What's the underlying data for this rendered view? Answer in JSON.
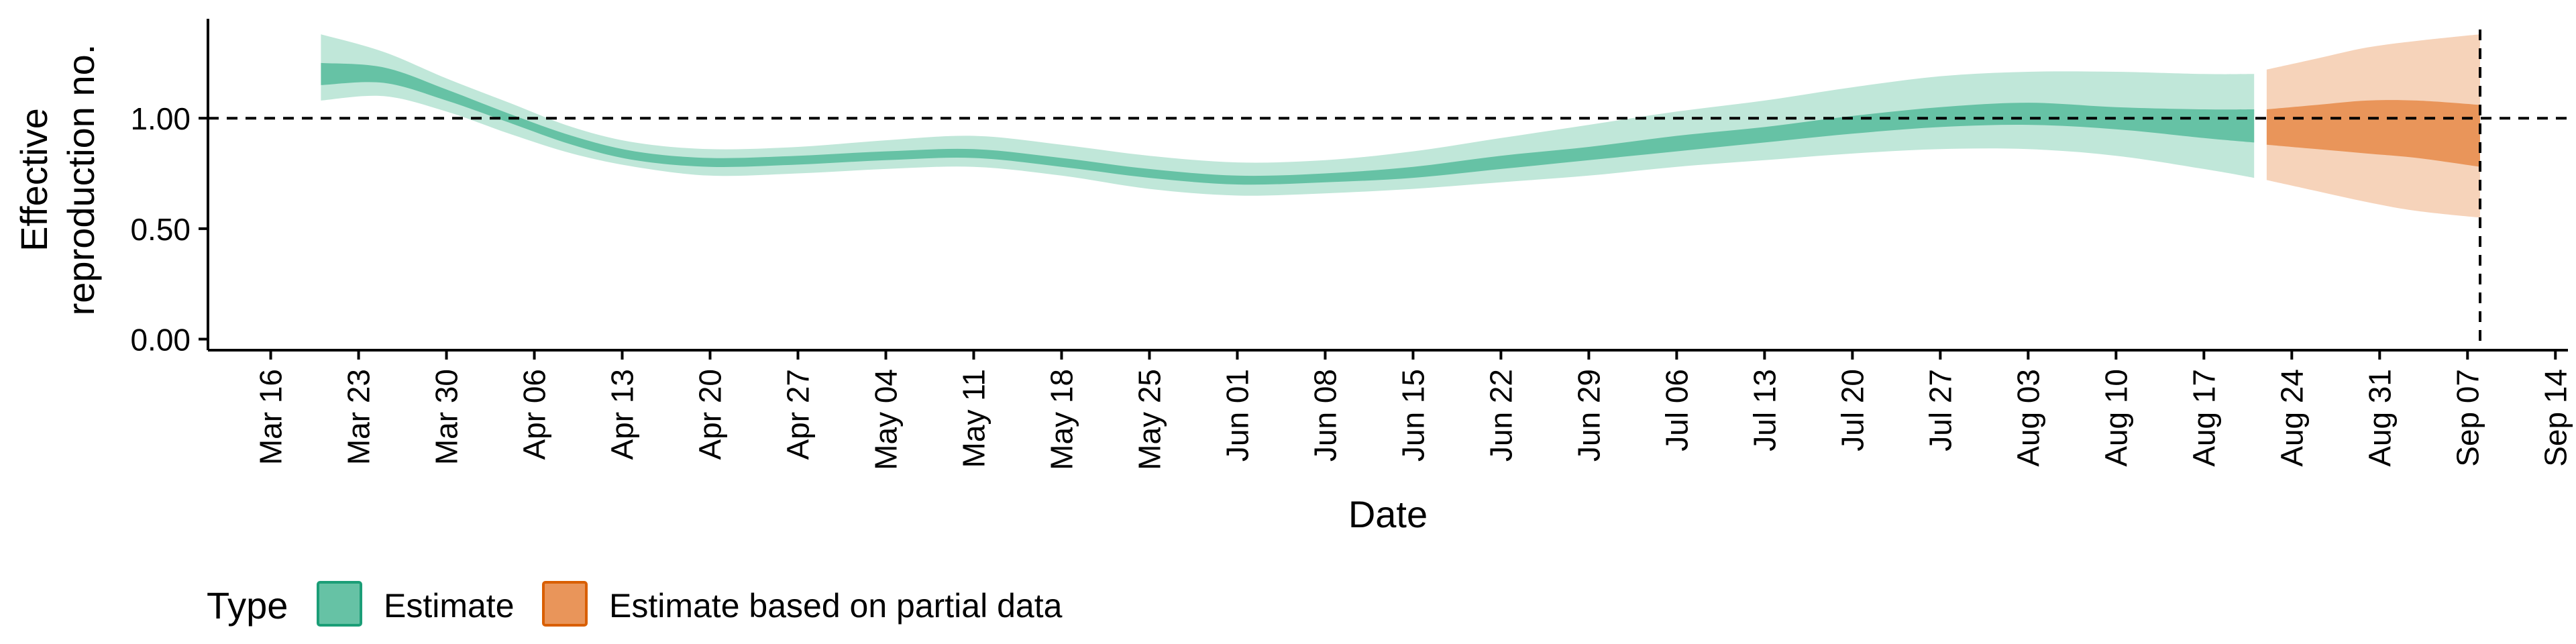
{
  "chart_data": {
    "type": "area",
    "xlabel": "Date",
    "ylabel": [
      "Effective",
      "reproduction no."
    ],
    "x_domain": [
      "2020-03-11",
      "2020-09-15"
    ],
    "ylim": [
      -0.05,
      1.45
    ],
    "yticks": [
      0,
      0.5,
      1.0
    ],
    "ytick_labels": [
      "0.00",
      "0.50",
      "1.00"
    ],
    "xticks": [
      "2020-03-16",
      "2020-03-23",
      "2020-03-30",
      "2020-04-06",
      "2020-04-13",
      "2020-04-20",
      "2020-04-27",
      "2020-05-04",
      "2020-05-11",
      "2020-05-18",
      "2020-05-25",
      "2020-06-01",
      "2020-06-08",
      "2020-06-15",
      "2020-06-22",
      "2020-06-29",
      "2020-07-06",
      "2020-07-13",
      "2020-07-20",
      "2020-07-27",
      "2020-08-03",
      "2020-08-10",
      "2020-08-17",
      "2020-08-24",
      "2020-08-31",
      "2020-09-07",
      "2020-09-14"
    ],
    "xtick_labels": [
      "Mar 16",
      "Mar 23",
      "Mar 30",
      "Apr 06",
      "Apr 13",
      "Apr 20",
      "Apr 27",
      "May 04",
      "May 11",
      "May 18",
      "May 25",
      "Jun 01",
      "Jun 08",
      "Jun 15",
      "Jun 22",
      "Jun 29",
      "Jul 06",
      "Jul 13",
      "Jul 20",
      "Jul 27",
      "Aug 03",
      "Aug 10",
      "Aug 17",
      "Aug 24",
      "Aug 31",
      "Sep 07",
      "Sep 14"
    ],
    "reference_line_y": 1.0,
    "reference_line_x": "2020-09-08",
    "grid": false,
    "legend_placement": "bottom-left",
    "legend_title": "Type",
    "series": [
      {
        "name": "Estimate",
        "color": "#66c2a5",
        "color_outer": "#c0e7d9",
        "border": "#1b9e77",
        "points": [
          {
            "x": "2020-03-20",
            "lo90": 1.08,
            "lo50": 1.15,
            "hi50": 1.25,
            "hi90": 1.38
          },
          {
            "x": "2020-03-25",
            "lo90": 1.1,
            "lo50": 1.16,
            "hi50": 1.23,
            "hi90": 1.3
          },
          {
            "x": "2020-03-30",
            "lo90": 1.03,
            "lo50": 1.08,
            "hi50": 1.13,
            "hi90": 1.18
          },
          {
            "x": "2020-04-04",
            "lo90": 0.93,
            "lo50": 0.98,
            "hi50": 1.02,
            "hi90": 1.07
          },
          {
            "x": "2020-04-09",
            "lo90": 0.84,
            "lo50": 0.88,
            "hi50": 0.92,
            "hi90": 0.96
          },
          {
            "x": "2020-04-14",
            "lo90": 0.78,
            "lo50": 0.81,
            "hi50": 0.85,
            "hi90": 0.89
          },
          {
            "x": "2020-04-20",
            "lo90": 0.74,
            "lo50": 0.78,
            "hi50": 0.82,
            "hi90": 0.86
          },
          {
            "x": "2020-04-27",
            "lo90": 0.75,
            "lo50": 0.79,
            "hi50": 0.83,
            "hi90": 0.87
          },
          {
            "x": "2020-05-04",
            "lo90": 0.77,
            "lo50": 0.81,
            "hi50": 0.85,
            "hi90": 0.9
          },
          {
            "x": "2020-05-11",
            "lo90": 0.78,
            "lo50": 0.82,
            "hi50": 0.86,
            "hi90": 0.92
          },
          {
            "x": "2020-05-18",
            "lo90": 0.74,
            "lo50": 0.78,
            "hi50": 0.82,
            "hi90": 0.88
          },
          {
            "x": "2020-05-25",
            "lo90": 0.68,
            "lo50": 0.73,
            "hi50": 0.77,
            "hi90": 0.83
          },
          {
            "x": "2020-06-01",
            "lo90": 0.65,
            "lo50": 0.7,
            "hi50": 0.74,
            "hi90": 0.8
          },
          {
            "x": "2020-06-08",
            "lo90": 0.66,
            "lo50": 0.71,
            "hi50": 0.75,
            "hi90": 0.81
          },
          {
            "x": "2020-06-15",
            "lo90": 0.68,
            "lo50": 0.73,
            "hi50": 0.78,
            "hi90": 0.85
          },
          {
            "x": "2020-06-22",
            "lo90": 0.71,
            "lo50": 0.77,
            "hi50": 0.83,
            "hi90": 0.91
          },
          {
            "x": "2020-06-29",
            "lo90": 0.74,
            "lo50": 0.81,
            "hi50": 0.87,
            "hi90": 0.97
          },
          {
            "x": "2020-07-06",
            "lo90": 0.78,
            "lo50": 0.85,
            "hi50": 0.92,
            "hi90": 1.03
          },
          {
            "x": "2020-07-13",
            "lo90": 0.81,
            "lo50": 0.89,
            "hi50": 0.96,
            "hi90": 1.08
          },
          {
            "x": "2020-07-20",
            "lo90": 0.84,
            "lo50": 0.93,
            "hi50": 1.01,
            "hi90": 1.14
          },
          {
            "x": "2020-07-27",
            "lo90": 0.86,
            "lo50": 0.96,
            "hi50": 1.05,
            "hi90": 1.19
          },
          {
            "x": "2020-08-03",
            "lo90": 0.86,
            "lo50": 0.97,
            "hi50": 1.07,
            "hi90": 1.21
          },
          {
            "x": "2020-08-10",
            "lo90": 0.83,
            "lo50": 0.95,
            "hi50": 1.05,
            "hi90": 1.21
          },
          {
            "x": "2020-08-17",
            "lo90": 0.77,
            "lo50": 0.91,
            "hi50": 1.04,
            "hi90": 1.2
          },
          {
            "x": "2020-08-21",
            "lo90": 0.73,
            "lo50": 0.89,
            "hi50": 1.04,
            "hi90": 1.2
          }
        ]
      },
      {
        "name": "Estimate based on partial data",
        "color": "#e9955a",
        "color_outer": "#f6d3ba",
        "border": "#d95f02",
        "points": [
          {
            "x": "2020-08-22",
            "lo90": 0.72,
            "lo50": 0.88,
            "hi50": 1.04,
            "hi90": 1.22
          },
          {
            "x": "2020-08-26",
            "lo90": 0.67,
            "lo50": 0.86,
            "hi50": 1.06,
            "hi90": 1.27
          },
          {
            "x": "2020-08-30",
            "lo90": 0.62,
            "lo50": 0.84,
            "hi50": 1.08,
            "hi90": 1.32
          },
          {
            "x": "2020-09-03",
            "lo90": 0.58,
            "lo50": 0.82,
            "hi50": 1.08,
            "hi90": 1.35
          },
          {
            "x": "2020-09-08",
            "lo90": 0.55,
            "lo50": 0.78,
            "hi50": 1.06,
            "hi90": 1.38
          }
        ]
      }
    ]
  }
}
